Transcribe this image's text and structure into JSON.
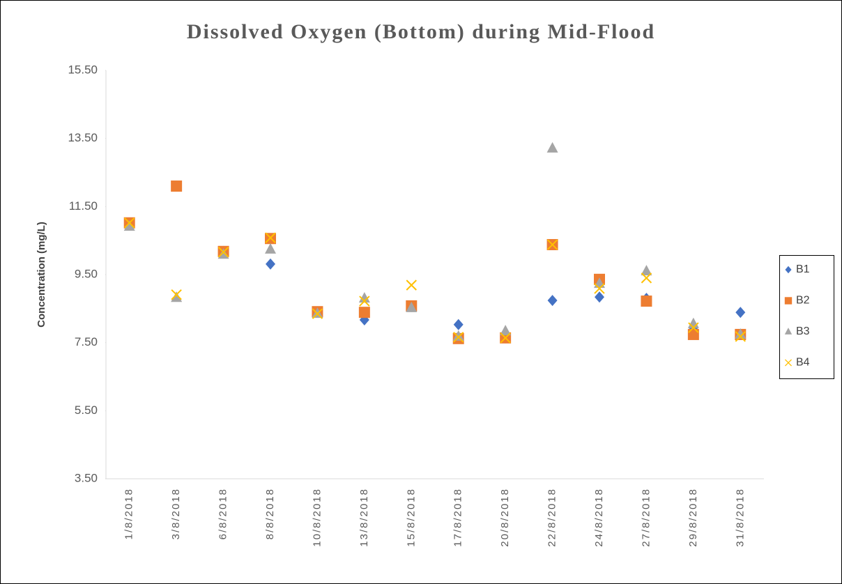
{
  "chart_data": {
    "type": "scatter",
    "title": "Dissolved Oxygen (Bottom) during Mid-Flood",
    "y_label": "Concentration (mg/L)",
    "categories": [
      "1/8/2018",
      "3/8/2018",
      "6/8/2018",
      "8/8/2018",
      "10/8/2018",
      "13/8/2018",
      "15/8/2018",
      "17/8/2018",
      "20/8/2018",
      "22/8/2018",
      "24/8/2018",
      "27/8/2018",
      "29/8/2018",
      "31/8/2018"
    ],
    "series": [
      {
        "name": "B1",
        "color": "#4472c4",
        "marker": "diamond",
        "values": [
          11.0,
          12.1,
          10.18,
          9.81,
          8.41,
          8.17,
          8.56,
          8.03,
          7.64,
          8.74,
          8.84,
          8.8,
          7.94,
          8.39
        ]
      },
      {
        "name": "B2",
        "color": "#ed7d31",
        "marker": "square",
        "values": [
          11.02,
          12.1,
          10.18,
          10.56,
          8.41,
          8.39,
          8.58,
          7.62,
          7.64,
          10.38,
          9.36,
          8.72,
          7.74,
          7.74
        ]
      },
      {
        "name": "B3",
        "color": "#a5a5a5",
        "marker": "triangle",
        "values": [
          10.91,
          8.82,
          10.09,
          10.24,
          8.35,
          8.8,
          8.52,
          7.68,
          7.84,
          13.21,
          9.23,
          9.6,
          8.05,
          7.74
        ]
      },
      {
        "name": "B4",
        "color": "#ffc000",
        "marker": "x",
        "values": [
          11.02,
          8.91,
          10.16,
          10.58,
          8.35,
          8.72,
          9.19,
          7.66,
          7.64,
          10.38,
          9.09,
          9.4,
          7.94,
          7.68
        ]
      }
    ],
    "ylim": [
      3.5,
      15.5
    ],
    "yticks": [
      {
        "value": 3.5,
        "label": "3.50"
      },
      {
        "value": 5.5,
        "label": "5.50"
      },
      {
        "value": 7.5,
        "label": "7.50"
      },
      {
        "value": 9.5,
        "label": "9.50"
      },
      {
        "value": 11.5,
        "label": "11.50"
      },
      {
        "value": 13.5,
        "label": "13.50"
      },
      {
        "value": 15.5,
        "label": "15.50"
      }
    ],
    "grid": false,
    "legend": "right"
  }
}
